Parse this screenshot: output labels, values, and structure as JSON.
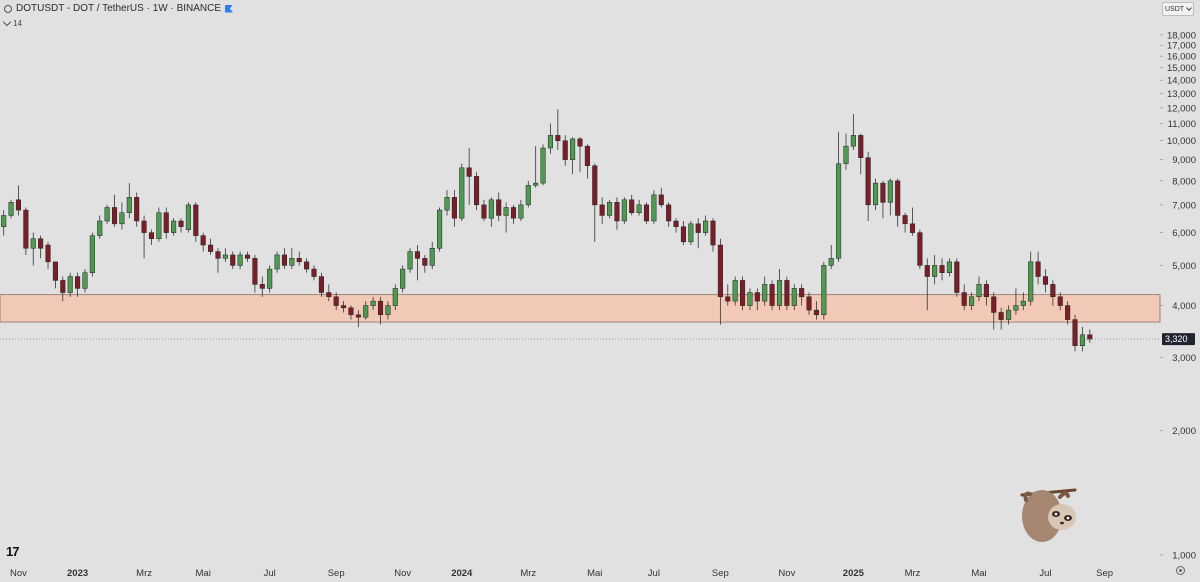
{
  "header": {
    "title": "DOTUSDT - DOT / TetherUS · 1W · BINANCE",
    "indicator_count": "14"
  },
  "currency_button": {
    "label": "USDT"
  },
  "price_tag": "3,320",
  "colors": {
    "background": "#e1e1e1",
    "up": "#4f9a52",
    "down": "#7a1f28",
    "zone_fill": "#f2c9b6",
    "zone_border": "#8a6e66",
    "price_tag": "#1f2430"
  },
  "icons": [
    "sym-icon",
    "flag-icon",
    "chev-icon",
    "dd-icon",
    "tradingview-logo-icon",
    "settings-icon",
    "sloth-sticker-icon"
  ],
  "chart_data": {
    "type": "candlestick",
    "interval": "1W",
    "scale": "log",
    "ylim": [
      1000,
      18500
    ],
    "y_ticks": [
      {
        "value": 18000,
        "label": "18,000"
      },
      {
        "value": 17000,
        "label": "17,000"
      },
      {
        "value": 16000,
        "label": "16,000"
      },
      {
        "value": 15000,
        "label": "15,000"
      },
      {
        "value": 14000,
        "label": "14,000"
      },
      {
        "value": 13000,
        "label": "13,000"
      },
      {
        "value": 12000,
        "label": "12,000"
      },
      {
        "value": 11000,
        "label": "11,000"
      },
      {
        "value": 10000,
        "label": "10,000"
      },
      {
        "value": 9000,
        "label": "9,000"
      },
      {
        "value": 8000,
        "label": "8,000"
      },
      {
        "value": 7000,
        "label": "7,000"
      },
      {
        "value": 6000,
        "label": "6,000"
      },
      {
        "value": 5000,
        "label": "5,000"
      },
      {
        "value": 4000,
        "label": "4,000"
      },
      {
        "value": 3000,
        "label": "3,000"
      },
      {
        "value": 2000,
        "label": "2,000"
      },
      {
        "value": 1000,
        "label": "1,000"
      }
    ],
    "x_ticks": [
      {
        "index": 2,
        "label": "Nov"
      },
      {
        "index": 10,
        "label": "2023",
        "bold": true
      },
      {
        "index": 19,
        "label": "Mrz"
      },
      {
        "index": 27,
        "label": "Mai"
      },
      {
        "index": 36,
        "label": "Jul"
      },
      {
        "index": 45,
        "label": "Sep"
      },
      {
        "index": 54,
        "label": "Nov"
      },
      {
        "index": 62,
        "label": "2024",
        "bold": true
      },
      {
        "index": 71,
        "label": "Mrz"
      },
      {
        "index": 80,
        "label": "Mai"
      },
      {
        "index": 88,
        "label": "Jul"
      },
      {
        "index": 97,
        "label": "Sep"
      },
      {
        "index": 106,
        "label": "Nov"
      },
      {
        "index": 115,
        "label": "2025",
        "bold": true
      },
      {
        "index": 123,
        "label": "Mrz"
      },
      {
        "index": 132,
        "label": "Mai"
      },
      {
        "index": 141,
        "label": "Jul"
      },
      {
        "index": 149,
        "label": "Sep"
      }
    ],
    "total_slots": 157,
    "support_zone": [
      3650,
      4250
    ],
    "last_price": 3320,
    "candles": [
      [
        6.2,
        6.6,
        6.8,
        5.9
      ],
      [
        6.6,
        7.1,
        7.2,
        6.5
      ],
      [
        7.2,
        6.8,
        7.8,
        6.6
      ],
      [
        6.8,
        5.5,
        6.9,
        5.3
      ],
      [
        5.5,
        5.8,
        6.0,
        5.0
      ],
      [
        5.8,
        5.5,
        5.9,
        5.2
      ],
      [
        5.6,
        5.1,
        5.7,
        4.9
      ],
      [
        5.1,
        4.6,
        5.1,
        4.4
      ],
      [
        4.6,
        4.3,
        4.7,
        4.1
      ],
      [
        4.3,
        4.7,
        4.8,
        4.2
      ],
      [
        4.7,
        4.4,
        4.8,
        4.2
      ],
      [
        4.4,
        4.8,
        4.9,
        4.3
      ],
      [
        4.8,
        5.9,
        6.0,
        4.7
      ],
      [
        5.9,
        6.4,
        6.6,
        5.8
      ],
      [
        6.4,
        6.9,
        7.0,
        6.3
      ],
      [
        6.9,
        6.3,
        7.4,
        6.2
      ],
      [
        6.3,
        6.7,
        7.1,
        6.1
      ],
      [
        6.7,
        7.3,
        7.9,
        6.5
      ],
      [
        7.3,
        6.4,
        7.5,
        6.2
      ],
      [
        6.4,
        6.0,
        6.6,
        5.2
      ],
      [
        6.0,
        5.8,
        6.1,
        5.6
      ],
      [
        5.8,
        6.7,
        6.9,
        5.7
      ],
      [
        6.7,
        6.0,
        6.9,
        5.8
      ],
      [
        6.0,
        6.4,
        6.5,
        5.9
      ],
      [
        6.4,
        6.2,
        6.5,
        6.0
      ],
      [
        6.1,
        7.0,
        7.1,
        6.0
      ],
      [
        7.0,
        5.9,
        7.1,
        5.7
      ],
      [
        5.9,
        5.6,
        6.0,
        5.4
      ],
      [
        5.6,
        5.4,
        5.8,
        5.3
      ],
      [
        5.4,
        5.2,
        5.5,
        4.8
      ],
      [
        5.2,
        5.3,
        5.5,
        5.1
      ],
      [
        5.3,
        5.0,
        5.4,
        4.9
      ],
      [
        5.0,
        5.3,
        5.4,
        4.9
      ],
      [
        5.3,
        5.2,
        5.4,
        5.1
      ],
      [
        5.2,
        4.5,
        5.3,
        4.3
      ],
      [
        4.5,
        4.4,
        4.7,
        4.2
      ],
      [
        4.4,
        4.9,
        5.0,
        4.3
      ],
      [
        4.9,
        5.3,
        5.4,
        4.8
      ],
      [
        5.3,
        5.0,
        5.5,
        4.9
      ],
      [
        5.0,
        5.2,
        5.5,
        4.9
      ],
      [
        5.2,
        5.1,
        5.4,
        5.0
      ],
      [
        5.1,
        4.9,
        5.2,
        4.8
      ],
      [
        4.9,
        4.7,
        5.0,
        4.6
      ],
      [
        4.7,
        4.3,
        4.8,
        4.2
      ],
      [
        4.3,
        4.2,
        4.5,
        4.1
      ],
      [
        4.2,
        4.0,
        4.3,
        3.9
      ],
      [
        4.0,
        3.95,
        4.1,
        3.85
      ],
      [
        3.95,
        3.8,
        4.0,
        3.7
      ],
      [
        3.8,
        3.75,
        3.9,
        3.55
      ],
      [
        3.75,
        4.0,
        4.1,
        3.7
      ],
      [
        4.0,
        4.1,
        4.2,
        3.9
      ],
      [
        4.1,
        3.8,
        4.2,
        3.6
      ],
      [
        3.8,
        4.0,
        4.1,
        3.7
      ],
      [
        4.0,
        4.4,
        4.5,
        3.9
      ],
      [
        4.4,
        4.9,
        5.0,
        4.3
      ],
      [
        4.9,
        5.4,
        5.5,
        4.8
      ],
      [
        5.4,
        5.2,
        5.6,
        4.6
      ],
      [
        5.2,
        5.0,
        5.3,
        4.8
      ],
      [
        5.0,
        5.5,
        5.7,
        4.9
      ],
      [
        5.5,
        6.8,
        6.9,
        5.4
      ],
      [
        6.8,
        7.3,
        7.6,
        6.6
      ],
      [
        7.3,
        6.5,
        7.6,
        6.2
      ],
      [
        6.5,
        8.6,
        8.8,
        6.4
      ],
      [
        8.6,
        8.2,
        9.6,
        7.0
      ],
      [
        8.2,
        7.0,
        8.4,
        6.8
      ],
      [
        7.0,
        6.5,
        7.2,
        6.4
      ],
      [
        6.5,
        7.2,
        7.3,
        6.2
      ],
      [
        7.2,
        6.6,
        7.5,
        6.4
      ],
      [
        6.6,
        6.9,
        7.1,
        6.0
      ],
      [
        6.9,
        6.5,
        7.0,
        6.3
      ],
      [
        6.5,
        7.0,
        7.2,
        6.4
      ],
      [
        7.0,
        7.8,
        8.0,
        6.9
      ],
      [
        7.8,
        7.9,
        9.7,
        7.7
      ],
      [
        7.9,
        9.6,
        9.8,
        7.8
      ],
      [
        9.6,
        10.3,
        11.0,
        9.3
      ],
      [
        10.3,
        10.0,
        11.9,
        9.5
      ],
      [
        10.0,
        9.0,
        10.3,
        8.7
      ],
      [
        9.0,
        10.1,
        10.2,
        8.3
      ],
      [
        10.1,
        9.7,
        10.2,
        8.4
      ],
      [
        9.7,
        8.7,
        9.8,
        8.1
      ],
      [
        8.7,
        7.0,
        8.8,
        5.7
      ],
      [
        7.0,
        6.6,
        7.3,
        6.3
      ],
      [
        6.6,
        7.1,
        7.2,
        6.5
      ],
      [
        7.1,
        6.4,
        7.3,
        6.1
      ],
      [
        6.4,
        7.2,
        7.3,
        6.3
      ],
      [
        7.2,
        6.7,
        7.4,
        6.6
      ],
      [
        6.7,
        7.0,
        7.2,
        6.6
      ],
      [
        7.0,
        6.4,
        7.1,
        6.3
      ],
      [
        6.4,
        7.4,
        7.6,
        6.3
      ],
      [
        7.4,
        7.0,
        7.7,
        6.9
      ],
      [
        7.0,
        6.4,
        7.1,
        6.2
      ],
      [
        6.4,
        6.2,
        6.5,
        6.0
      ],
      [
        6.2,
        5.7,
        6.4,
        5.6
      ],
      [
        5.7,
        6.3,
        6.4,
        5.6
      ],
      [
        6.3,
        6.0,
        6.5,
        5.5
      ],
      [
        6.0,
        6.4,
        6.6,
        5.9
      ],
      [
        6.4,
        5.6,
        6.5,
        5.4
      ],
      [
        5.6,
        4.2,
        5.8,
        3.6
      ],
      [
        4.2,
        4.1,
        4.5,
        4.0
      ],
      [
        4.1,
        4.6,
        4.7,
        4.0
      ],
      [
        4.6,
        4.0,
        4.7,
        3.9
      ],
      [
        4.0,
        4.3,
        4.4,
        3.9
      ],
      [
        4.3,
        4.1,
        4.4,
        3.9
      ],
      [
        4.1,
        4.5,
        4.7,
        4.0
      ],
      [
        4.5,
        4.0,
        4.6,
        3.9
      ],
      [
        4.0,
        4.6,
        4.9,
        3.9
      ],
      [
        4.6,
        4.0,
        4.7,
        3.9
      ],
      [
        4.0,
        4.4,
        4.5,
        3.9
      ],
      [
        4.4,
        4.2,
        4.5,
        4.0
      ],
      [
        4.2,
        3.9,
        4.3,
        3.8
      ],
      [
        3.9,
        3.8,
        4.1,
        3.7
      ],
      [
        3.8,
        5.0,
        5.1,
        3.7
      ],
      [
        5.0,
        5.2,
        5.6,
        4.9
      ],
      [
        5.2,
        8.8,
        10.5,
        5.1
      ],
      [
        8.8,
        9.7,
        10.4,
        8.5
      ],
      [
        9.7,
        10.3,
        11.6,
        9.5
      ],
      [
        10.3,
        9.1,
        10.4,
        8.3
      ],
      [
        9.1,
        7.0,
        9.4,
        6.4
      ],
      [
        7.0,
        7.9,
        8.1,
        6.8
      ],
      [
        7.9,
        7.1,
        8.0,
        6.5
      ],
      [
        7.1,
        8.0,
        8.1,
        6.6
      ],
      [
        8.0,
        6.6,
        8.1,
        6.2
      ],
      [
        6.6,
        6.3,
        6.7,
        6.0
      ],
      [
        6.3,
        6.0,
        6.9,
        5.9
      ],
      [
        6.0,
        5.0,
        6.1,
        4.9
      ],
      [
        5.0,
        4.7,
        5.2,
        3.9
      ],
      [
        4.7,
        5.0,
        5.3,
        4.5
      ],
      [
        5.0,
        4.8,
        5.2,
        4.6
      ],
      [
        4.8,
        5.1,
        5.2,
        4.7
      ],
      [
        5.1,
        4.3,
        5.2,
        4.2
      ],
      [
        4.3,
        4.0,
        4.5,
        3.9
      ],
      [
        4.0,
        4.2,
        4.3,
        3.9
      ],
      [
        4.2,
        4.5,
        4.7,
        4.1
      ],
      [
        4.5,
        4.2,
        4.6,
        4.0
      ],
      [
        4.2,
        3.85,
        4.3,
        3.5
      ],
      [
        3.85,
        3.7,
        3.95,
        3.5
      ],
      [
        3.7,
        3.9,
        4.0,
        3.6
      ],
      [
        3.9,
        4.0,
        4.4,
        3.8
      ],
      [
        4.0,
        4.1,
        4.3,
        3.9
      ],
      [
        4.1,
        5.1,
        5.4,
        4.0
      ],
      [
        5.1,
        4.7,
        5.4,
        4.5
      ],
      [
        4.7,
        4.5,
        4.9,
        4.3
      ],
      [
        4.5,
        4.2,
        4.6,
        4.0
      ],
      [
        4.2,
        4.0,
        4.3,
        3.9
      ],
      [
        4.0,
        3.7,
        4.1,
        3.6
      ],
      [
        3.7,
        3.2,
        3.8,
        3.1
      ],
      [
        3.2,
        3.4,
        3.55,
        3.1
      ],
      [
        3.4,
        3.32,
        3.5,
        3.25
      ]
    ]
  }
}
